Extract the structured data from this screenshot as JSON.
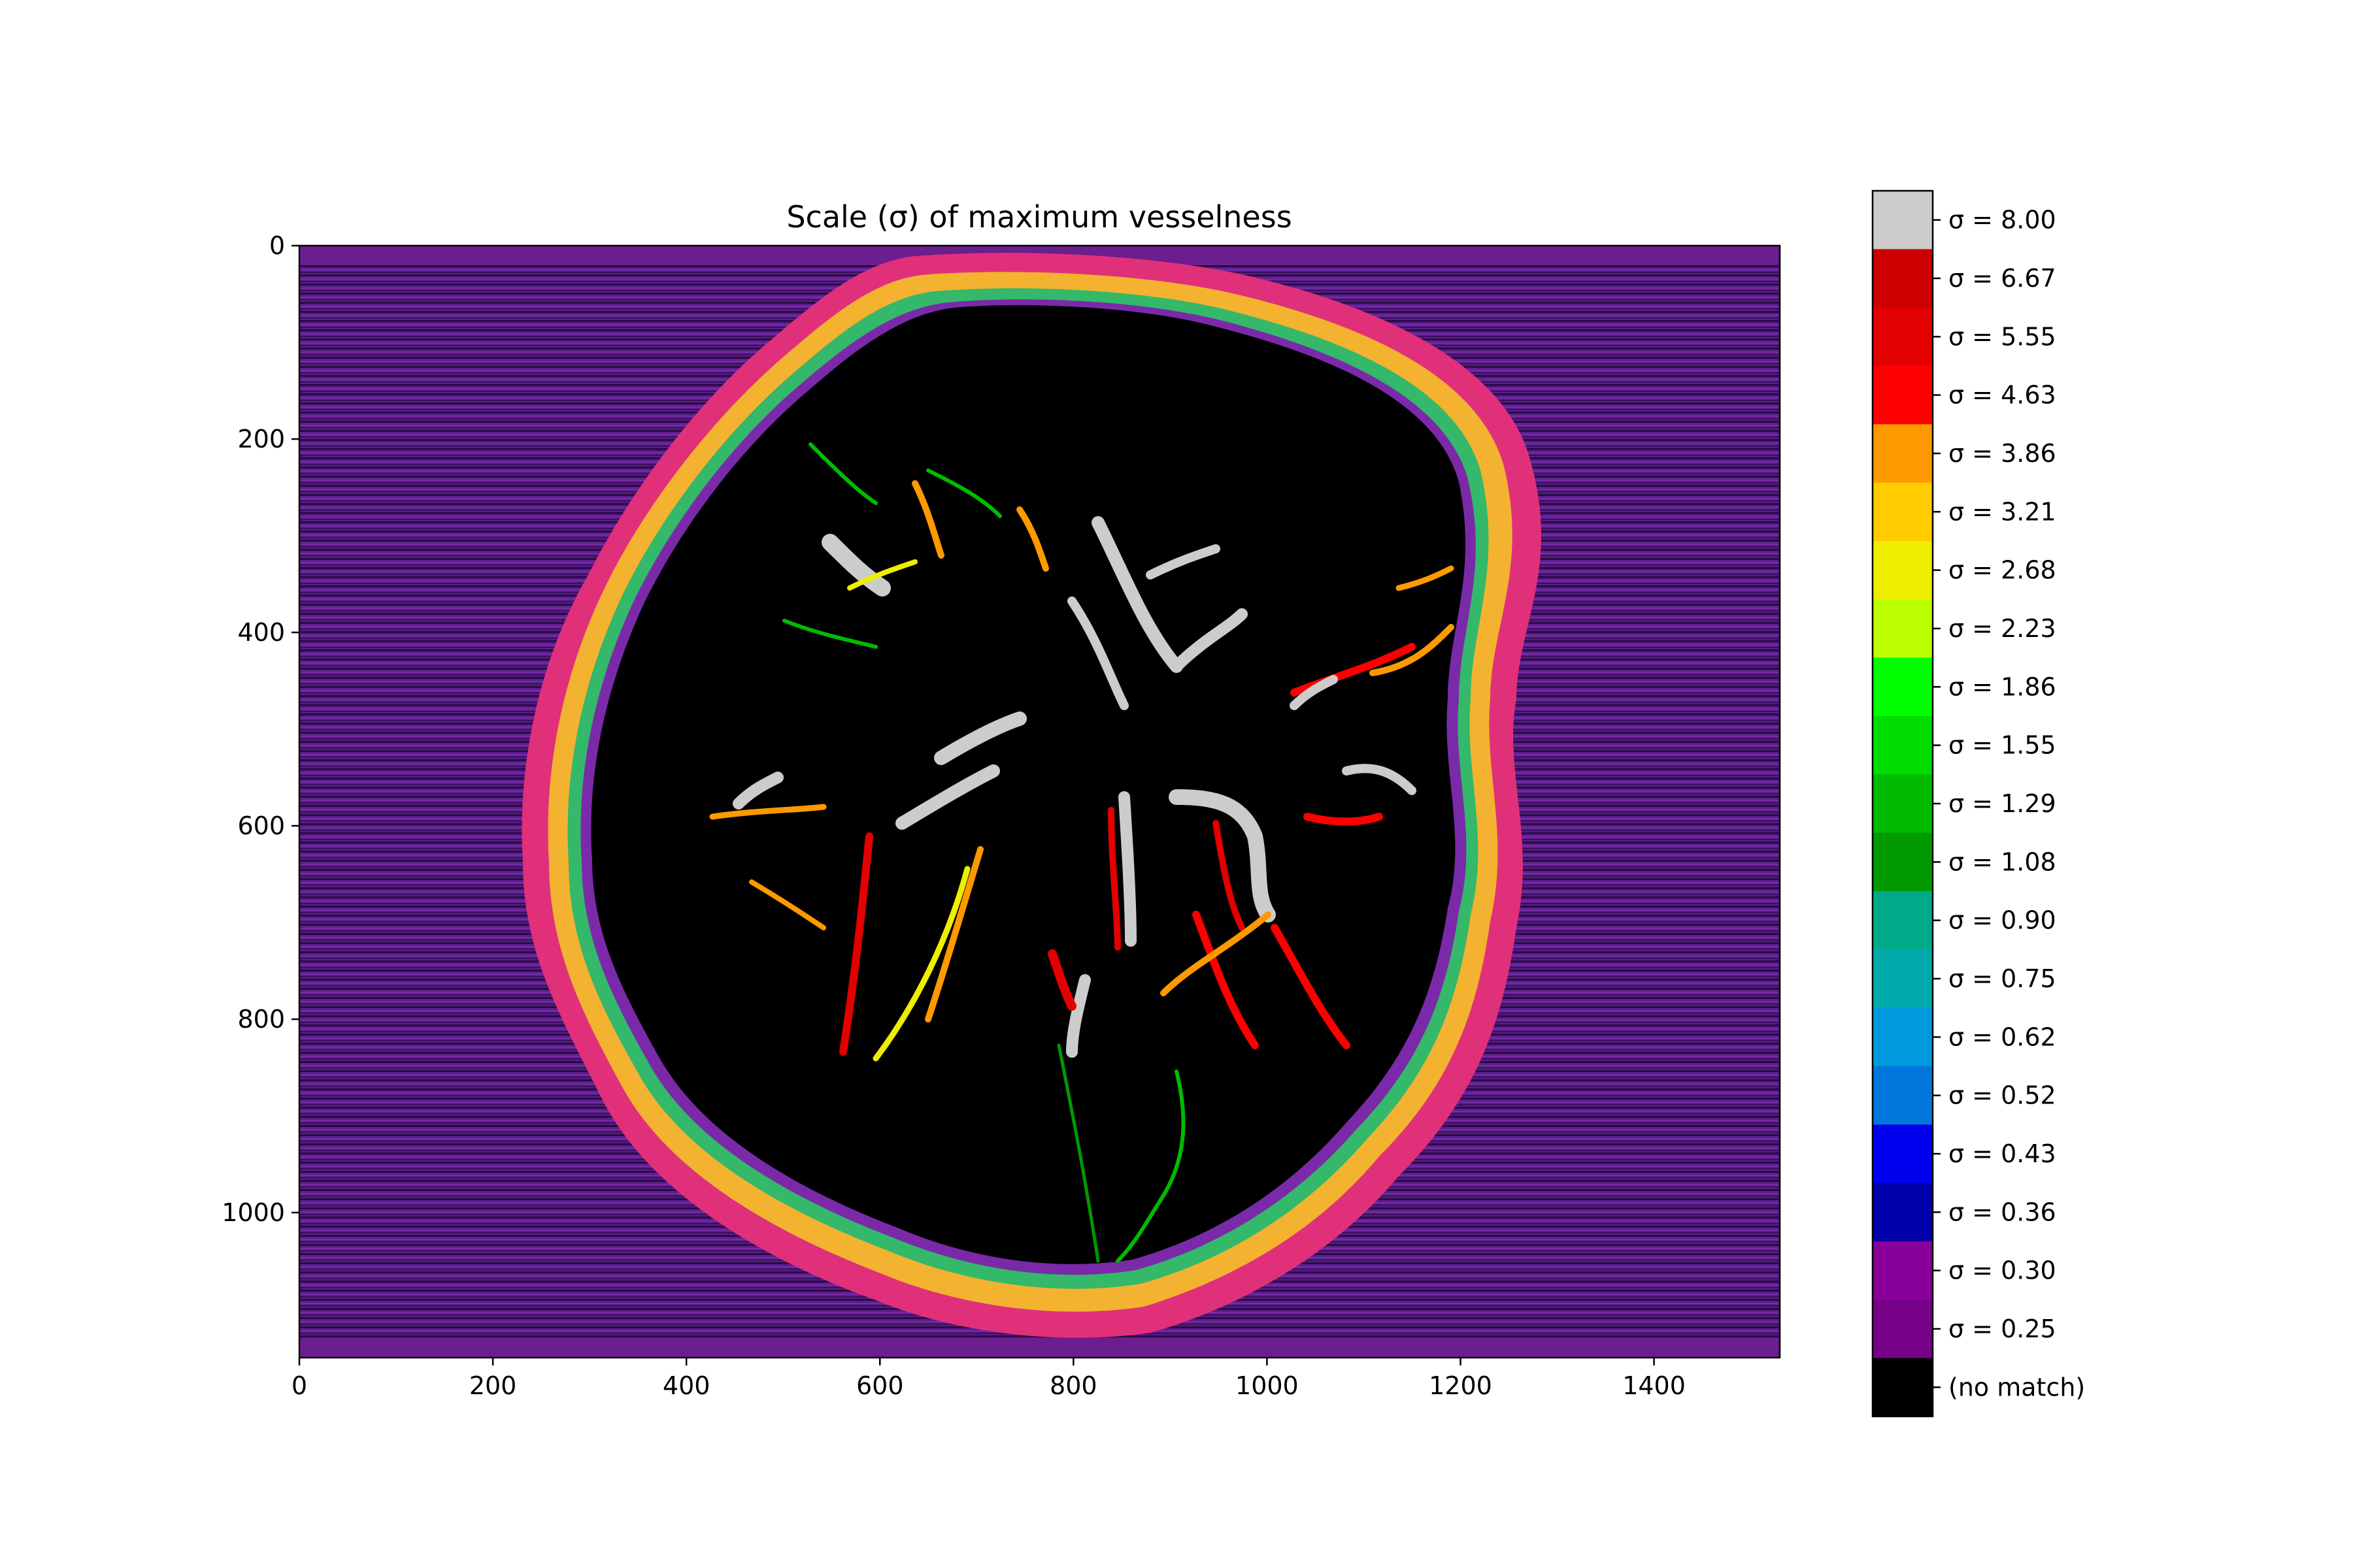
{
  "chart_data": {
    "type": "heatmap",
    "title": "Scale (σ) of maximum vesselness",
    "xlabel": "",
    "ylabel": "",
    "xlim": [
      0,
      1530
    ],
    "ylim": [
      1150,
      0
    ],
    "x_ticks": [
      0,
      200,
      400,
      600,
      800,
      1000,
      1200,
      1400
    ],
    "y_ticks": [
      0,
      200,
      400,
      600,
      800,
      1000
    ],
    "x_tick_labels": [
      "0",
      "200",
      "400",
      "600",
      "800",
      "1000",
      "1200",
      "1400"
    ],
    "y_tick_labels": [
      "0",
      "200",
      "400",
      "600",
      "800",
      "1000"
    ],
    "colorbar": {
      "entries": [
        {
          "label": "σ = 8.00",
          "color": "#cccccc"
        },
        {
          "label": "σ = 6.67",
          "color": "#cc0000"
        },
        {
          "label": "σ = 5.55",
          "color": "#e20000"
        },
        {
          "label": "σ = 4.63",
          "color": "#ff0000"
        },
        {
          "label": "σ = 3.86",
          "color": "#ff9900"
        },
        {
          "label": "σ = 3.21",
          "color": "#ffcc00"
        },
        {
          "label": "σ = 2.68",
          "color": "#eeee00"
        },
        {
          "label": "σ = 2.23",
          "color": "#bbff00"
        },
        {
          "label": "σ = 1.86",
          "color": "#00ff00"
        },
        {
          "label": "σ = 1.55",
          "color": "#00dd00"
        },
        {
          "label": "σ = 1.29",
          "color": "#00bb00"
        },
        {
          "label": "σ = 1.08",
          "color": "#009900"
        },
        {
          "label": "σ = 0.90",
          "color": "#00aa88"
        },
        {
          "label": "σ = 0.75",
          "color": "#00aaaa"
        },
        {
          "label": "σ = 0.62",
          "color": "#0099dd"
        },
        {
          "label": "σ = 0.52",
          "color": "#0077dd"
        },
        {
          "label": "σ = 0.43",
          "color": "#0000ee"
        },
        {
          "label": "σ = 0.36",
          "color": "#0000aa"
        },
        {
          "label": "σ = 0.30",
          "color": "#880099"
        },
        {
          "label": "σ = 0.25",
          "color": "#770088"
        },
        {
          "label": "(no match)",
          "color": "#000000"
        }
      ]
    }
  }
}
